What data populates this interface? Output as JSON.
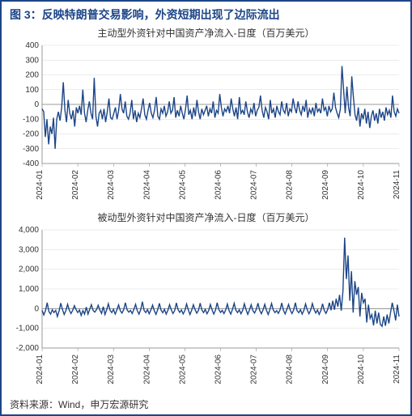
{
  "header": {
    "figure_label": "图 3：",
    "title": "反映特朗普交易影响，外资短期出现了边际流出"
  },
  "footer": {
    "source": "资料来源：Wind，申万宏源研究"
  },
  "chart1": {
    "type": "line",
    "title": "主动型外资针对中国资产净流入-日度（百万美元）",
    "ylim": [
      -400,
      400
    ],
    "ytick_step": 100,
    "yticks": [
      -400,
      -300,
      -200,
      -100,
      0,
      100,
      200,
      300,
      400
    ],
    "xlabels": [
      "2024-01",
      "2024-02",
      "2024-03",
      "2024-04",
      "2024-05",
      "2024-06",
      "2024-07",
      "2024-08",
      "2024-09",
      "2024-10",
      "2024-11"
    ],
    "line_color": "#1c4587",
    "line_width": 1.4,
    "grid_color": "#d9d9d9",
    "background_color": "#ffffff",
    "axis_color": "#808080",
    "label_fontsize": 10,
    "title_fontsize": 12,
    "data": [
      -30,
      -50,
      -220,
      -100,
      -270,
      -150,
      -200,
      -90,
      -300,
      -100,
      -50,
      -110,
      -20,
      150,
      -40,
      -120,
      30,
      -60,
      -100,
      -40,
      -150,
      -20,
      -60,
      -10,
      -70,
      100,
      -60,
      -120,
      -40,
      20,
      -60,
      -100,
      180,
      -80,
      -150,
      -60,
      -40,
      -100,
      -30,
      -120,
      -50,
      40,
      -90,
      -100,
      -60,
      -20,
      -100,
      -40,
      70,
      -30,
      -60,
      20,
      -80,
      -100,
      -60,
      30,
      -100,
      -40,
      -120,
      -60,
      -90,
      -30,
      40,
      -70,
      -100,
      -40,
      10,
      -60,
      -90,
      -40,
      50,
      -80,
      -100,
      -30,
      -60,
      -10,
      -80,
      -50,
      20,
      -60,
      -40,
      50,
      -90,
      -40,
      -80,
      -10,
      -60,
      -100,
      -30,
      60,
      -70,
      -40,
      -100,
      -20,
      -80,
      30,
      -50,
      -100,
      -30,
      -70,
      -40,
      -10,
      -80,
      -30,
      -60,
      20,
      -90,
      -40,
      -60,
      70,
      -20,
      -80,
      -30,
      -50,
      -10,
      -60,
      40,
      -30,
      -80,
      -20,
      -100,
      50,
      -60,
      -40,
      -70,
      20,
      -50,
      -90,
      -30,
      -60,
      10,
      -80,
      -40,
      -20,
      60,
      -40,
      -90,
      -20,
      -50,
      -100,
      30,
      -60,
      -30,
      -90,
      -10,
      -50,
      -70,
      20,
      -40,
      -60,
      10,
      -80,
      -30,
      -50,
      40,
      -20,
      -60,
      20,
      -40,
      -70,
      -10,
      -50,
      30,
      -90,
      -30,
      -60,
      -20,
      -80,
      10,
      -50,
      -30,
      -60,
      40,
      -40,
      -20,
      -80,
      -10,
      -50,
      -30,
      80,
      -20,
      -60,
      -90,
      -30,
      260,
      100,
      -60,
      120,
      -20,
      -80,
      190,
      50,
      -70,
      -110,
      -20,
      -150,
      -60,
      -100,
      -30,
      -130,
      -50,
      -160,
      -80,
      -40,
      -110,
      -60,
      -130,
      -30,
      -90,
      -50,
      -110,
      -20,
      -70,
      -40,
      -90,
      60,
      -50,
      -80,
      -30,
      -60
    ]
  },
  "chart2": {
    "type": "line",
    "title": "被动型外资针对中国资产净流入-日度（百万美元）",
    "ylim": [
      -2000,
      4000
    ],
    "ytick_step": 1000,
    "yticks": [
      -2000,
      -1000,
      0,
      1000,
      2000,
      3000,
      4000
    ],
    "xlabels": [
      "2024-01",
      "2024-02",
      "2024-03",
      "2024-04",
      "2024-05",
      "2024-06",
      "2024-07",
      "2024-08",
      "2024-09",
      "2024-10",
      "2024-11"
    ],
    "line_color": "#1c4587",
    "line_width": 1.4,
    "grid_color": "#d9d9d9",
    "background_color": "#ffffff",
    "axis_color": "#808080",
    "label_fontsize": 10,
    "title_fontsize": 12,
    "data": [
      -80,
      -320,
      -100,
      300,
      -150,
      -280,
      -60,
      -200,
      -90,
      -400,
      -120,
      280,
      -50,
      -300,
      -100,
      220,
      -80,
      -250,
      -90,
      150,
      -50,
      -200,
      -70,
      -350,
      -100,
      -280,
      80,
      -280,
      -40,
      200,
      -90,
      -180,
      -50,
      170,
      -80,
      -240,
      100,
      -300,
      -60,
      250,
      -90,
      -200,
      -40,
      -280,
      -70,
      190,
      -100,
      -230,
      -50,
      300,
      -60,
      -180,
      -90,
      -250,
      -40,
      220,
      -100,
      -280,
      -60,
      350,
      -90,
      -200,
      -50,
      -260,
      -70,
      180,
      -100,
      -290,
      -60,
      270,
      -80,
      -210,
      -40,
      -280,
      -90,
      200,
      -60,
      -250,
      -100,
      290,
      -50,
      -190,
      -70,
      -270,
      -100,
      240,
      -60,
      -300,
      -80,
      200,
      -50,
      -230,
      -90,
      280,
      -70,
      -200,
      -40,
      -260,
      -100,
      210,
      -60,
      -280,
      -80,
      300,
      -50,
      -190,
      -90,
      -250,
      -70,
      230,
      -100,
      -280,
      -40,
      270,
      -80,
      -200,
      -60,
      -260,
      -90,
      250,
      -50,
      -290,
      -70,
      200,
      -100,
      -220,
      -40,
      280,
      -90,
      -260,
      -60,
      220,
      -80,
      -300,
      -50,
      260,
      -70,
      -200,
      -100,
      -240,
      -60,
      290,
      -90,
      -270,
      -40,
      210,
      -80,
      -250,
      -70,
      300,
      -100,
      -210,
      -50,
      -280,
      -90,
      240,
      -60,
      -260,
      -80,
      260,
      -40,
      -220,
      -70,
      -290,
      -100,
      250,
      -90,
      -240,
      -50,
      300,
      -80,
      400,
      -60,
      500,
      100,
      700,
      -100,
      900,
      3600,
      1500,
      2700,
      400,
      1900,
      -200,
      1400,
      700,
      1100,
      -400,
      800,
      300,
      500,
      -700,
      200,
      -500,
      -300,
      -850,
      -100,
      -750,
      -200,
      -800,
      -900,
      -400,
      -870,
      -300,
      -750,
      -200,
      300,
      -100,
      -600,
      200,
      -400
    ]
  }
}
